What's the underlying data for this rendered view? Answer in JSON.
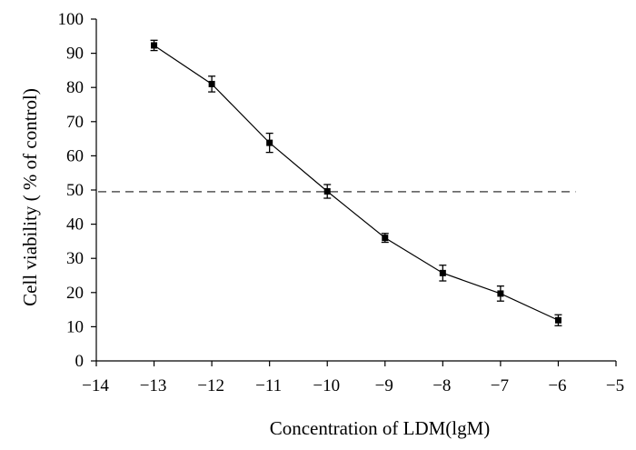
{
  "chart_data": {
    "type": "line",
    "title": "",
    "xlabel": "Concentration of LDM(lgM)",
    "ylabel": "Cell viability ( % of control)",
    "xlim": [
      -14,
      -5
    ],
    "ylim": [
      0,
      100
    ],
    "x_ticks": [
      -14,
      -13,
      -12,
      -11,
      -10,
      -9,
      -8,
      -7,
      -6,
      -5
    ],
    "x_tick_labels": [
      "−14",
      "−13",
      "−12",
      "−11",
      "−10",
      "−9",
      "−8",
      "−7",
      "−6",
      "−5"
    ],
    "y_ticks": [
      0,
      10,
      20,
      30,
      40,
      50,
      60,
      70,
      80,
      90,
      100
    ],
    "y_tick_labels": [
      "0",
      "10",
      "20",
      "30",
      "40",
      "50",
      "60",
      "70",
      "80",
      "90",
      "100"
    ],
    "grid": false,
    "series": [
      {
        "name": "Cell viability",
        "x": [
          -13,
          -12,
          -11,
          -10,
          -9,
          -8,
          -7,
          -6
        ],
        "values": [
          92.3,
          81.0,
          63.8,
          49.6,
          36.0,
          25.7,
          19.7,
          11.9
        ],
        "errors": [
          1.5,
          2.3,
          2.8,
          2.0,
          1.3,
          2.3,
          2.2,
          1.6
        ],
        "marker": "square",
        "color": "#000000"
      }
    ],
    "reference_line": {
      "y": 49.5,
      "x_start": -14,
      "x_end": -5.7,
      "style": "dashed",
      "color": "#555555"
    }
  }
}
